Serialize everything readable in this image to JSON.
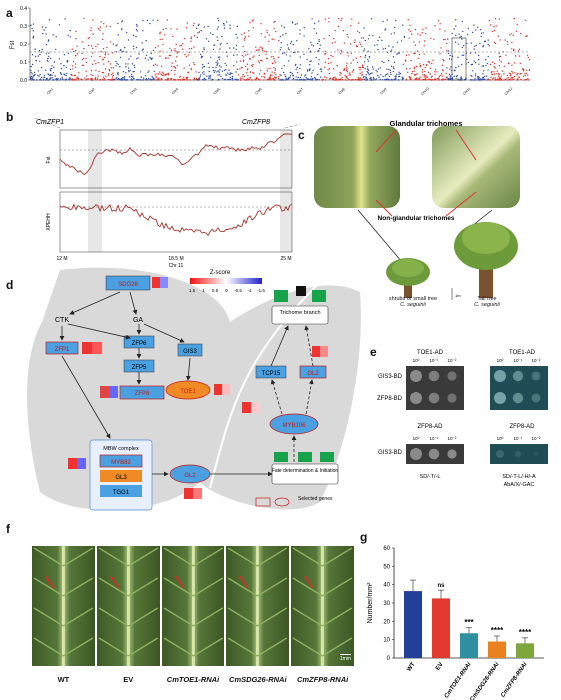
{
  "panels": {
    "a": {
      "letter": "a",
      "y_label": "Fst",
      "y_ticks": [
        "0.4",
        "0.3",
        "0.2",
        "0.1",
        "0.0"
      ],
      "chromosomes": [
        "Chr1",
        "Chr2",
        "Chr3",
        "Chr4",
        "Chr5",
        "Chr6",
        "Chr7",
        "Chr8",
        "Chr9",
        "Chr10",
        "Chr11",
        "Chr12"
      ]
    },
    "b": {
      "letter": "b",
      "gene_left": "CmZFP1",
      "gene_right": "CmZFP8",
      "track1_label": "Fst",
      "track2_label": "XPEHH",
      "x_left": "12 M",
      "x_mid": "18.5 M",
      "x_right": "25 M",
      "x_chr": "Chr 11"
    },
    "c": {
      "letter": "c",
      "glandular": "Glandular trichomes",
      "non_glandular": "Non-glandular trichomes",
      "small_tree": "shrubs or small tree",
      "small_species": "C. seguinii",
      "tall_tree": "Tall tree",
      "tall_species": "C. seguinii",
      "scale": "1m"
    },
    "d": {
      "letter": "d",
      "zscore_title": "Z-score",
      "zscore_ticks": [
        "1.5",
        "1",
        "0.5",
        "0",
        "-0.5",
        "-1",
        "-1.5"
      ],
      "ctk": "CTK",
      "ga": "GA",
      "genes": {
        "sdg26": "SDG26",
        "zfp1": "ZFP1",
        "zfp6": "ZFP6",
        "zfp5": "ZFP5",
        "zfp8": "ZFP8",
        "gis3": "GIS3",
        "toe1": "TOE1",
        "tcp15": "TCP15",
        "gl2_right": "GL2",
        "myb106": "MYB106",
        "gl2_mid": "GL2",
        "myb82": "MYB82",
        "gl3": "GL3",
        "tgg1": "TGG1"
      },
      "mbw": "MBW complex",
      "trichome_branch": "Trichome branch",
      "fate": "Fate determination & Initiation",
      "selected": "Selected genes"
    },
    "e": {
      "letter": "e",
      "toe1_ad": "TOE1-AD",
      "zfp8_ad": "ZFP8-AD",
      "gis3_bd": "GIS3-BD",
      "zfp8_bd": "ZFP8-BD",
      "dilutions": [
        "10⁰",
        "10⁻¹",
        "10⁻²"
      ],
      "medium_left": "SD/-T/-L",
      "medium_right1": "SD/-T-L/-H/-A",
      "medium_right2": "AbA/X/-GAC"
    },
    "f": {
      "letter": "f",
      "labels": [
        "WT",
        "EV",
        "CmTOE1-RNAi",
        "CmSDG26-RNAi",
        "CmZFP8-RNAi"
      ],
      "scale": "1mm"
    },
    "g": {
      "letter": "g"
    }
  },
  "chart_data": {
    "type": "bar",
    "categories": [
      "WT",
      "EV",
      "CmTOE1-RNAi",
      "CmSDG26-RNAi",
      "CmZFP8-RNAi"
    ],
    "values": [
      36.5,
      32.5,
      13.5,
      9,
      8
    ],
    "errors": [
      6,
      4.5,
      3,
      3,
      3
    ],
    "colors": [
      "#223f9a",
      "#e23a2f",
      "#2f8ea0",
      "#e8821e",
      "#7fa63a"
    ],
    "significance": [
      "",
      "ns",
      "***",
      "****",
      "****"
    ],
    "ylabel": "Number/mm²",
    "ylim": [
      0,
      60
    ],
    "yticks": [
      0,
      10,
      20,
      30,
      40,
      50,
      60
    ]
  }
}
